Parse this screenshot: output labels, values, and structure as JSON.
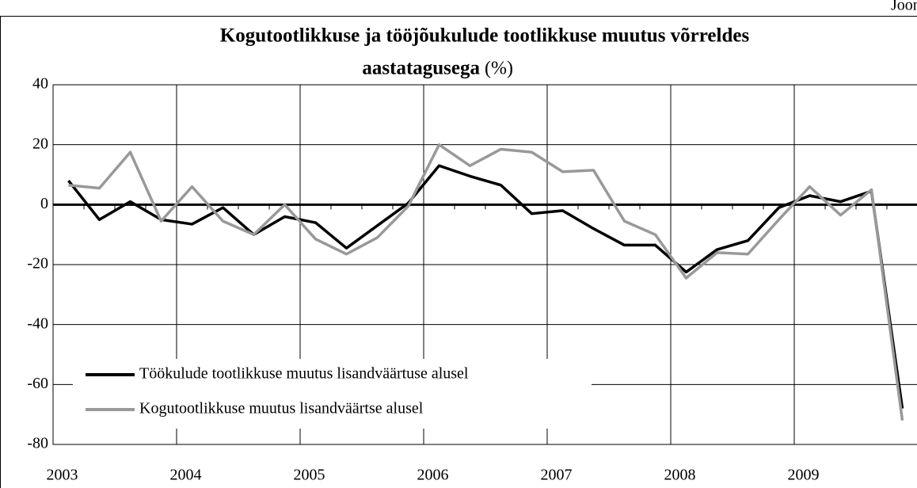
{
  "chart_data": {
    "type": "line",
    "corner_label": "Joon",
    "title": [
      "Kogutootlikkuse ja tööjõukulude tootlikkuse muutus võrreldes",
      "aastatagusega"
    ],
    "title_unit": "(%)",
    "categories": [
      "2003",
      null,
      null,
      null,
      "2004",
      null,
      null,
      null,
      "2005",
      null,
      null,
      null,
      "2006",
      null,
      null,
      null,
      "2007",
      null,
      null,
      null,
      "2008",
      null,
      null,
      null,
      "2009",
      null,
      null,
      null
    ],
    "series": [
      {
        "name": "Töökulude tootlikkuse muutus lisandväärtuse alusel",
        "color": "#000000",
        "values": [
          8,
          -5,
          1,
          -5,
          -6.5,
          -1,
          -10,
          -4,
          -6,
          -14.5,
          -7,
          0.5,
          13,
          9.5,
          6.5,
          -3,
          -2,
          -8,
          -13.5,
          -13.5,
          -22.5,
          -15,
          -12,
          -1,
          3,
          1,
          4.5,
          -68
        ]
      },
      {
        "name": "Kogutootlikkuse muutus lisandväärtse alusel",
        "color": "#999999",
        "values": [
          6.5,
          5.5,
          17.5,
          -5.5,
          6,
          -5.5,
          -10,
          0,
          -11.5,
          -16.5,
          -11,
          -0.5,
          20,
          13,
          18.5,
          17.5,
          11,
          11.5,
          -5.5,
          -10,
          -24.5,
          -16,
          -16.5,
          -5,
          6,
          -3.5,
          5,
          -72
        ]
      }
    ],
    "ylim": [
      -80,
      40
    ],
    "yticks": [
      -80,
      -60,
      -40,
      -20,
      0,
      20,
      40
    ],
    "grid": true
  }
}
